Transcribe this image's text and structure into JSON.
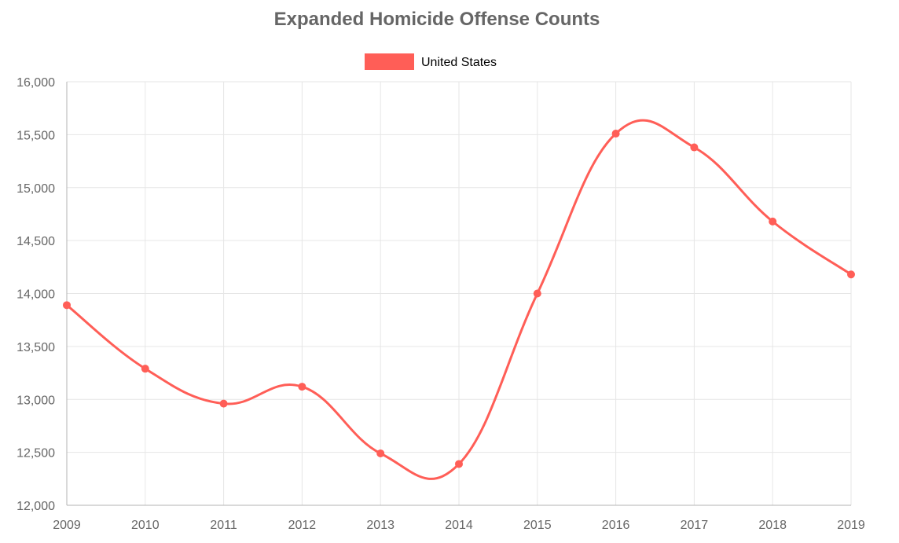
{
  "chart_data": {
    "type": "line",
    "title": "Expanded Homicide Offense Counts",
    "x": [
      "2009",
      "2010",
      "2011",
      "2012",
      "2013",
      "2014",
      "2015",
      "2016",
      "2017",
      "2018",
      "2019"
    ],
    "series": [
      {
        "name": "United States",
        "color": "#ff5e57",
        "values": [
          13890,
          13290,
          12960,
          13120,
          12490,
          12390,
          14000,
          15510,
          15380,
          14680,
          14180
        ]
      }
    ],
    "ylim": [
      12000,
      16000
    ],
    "yticks": [
      "12,000",
      "12,500",
      "13,000",
      "13,500",
      "14,000",
      "14,500",
      "15,000",
      "15,500",
      "16,000"
    ],
    "ytick_values": [
      12000,
      12500,
      13000,
      13500,
      14000,
      14500,
      15000,
      15500,
      16000
    ],
    "grid": true,
    "legend": "top-center",
    "curve": "smooth"
  }
}
